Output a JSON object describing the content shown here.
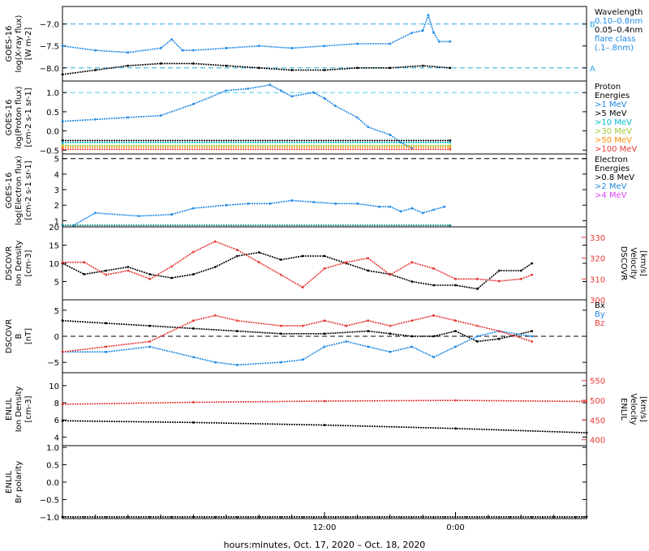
{
  "chart_data": {
    "type": "line",
    "xlabel": "hours:minutes, Oct. 17, 2020 – Oct. 18, 2020",
    "x_ticks": [
      "12:00",
      "0:00"
    ],
    "x_range_hours": [
      -12,
      36
    ],
    "panels": [
      {
        "id": "xray",
        "ylabel": [
          "GOES-16",
          "log(X-ray flux)",
          "[W m-2]"
        ],
        "ylim": [
          -8.3,
          -6.6
        ],
        "yticks": [
          -7.0,
          -7.5,
          -8.0
        ],
        "ytick_labels": [
          "−7.0",
          "−7.5",
          "−8.0"
        ],
        "hlines": [
          {
            "y": -7.0,
            "color": "#29a7e5",
            "label": "B"
          },
          {
            "y": -8.0,
            "color": "#29a7e5",
            "label": "A"
          }
        ],
        "legend": [
          {
            "text": "Wavelength",
            "color": "#000000"
          },
          {
            "text": "0.10–0.8nm",
            "color": "#1e88e5"
          },
          {
            "text": "0.05–0.4nm",
            "color": "#000000"
          },
          {
            "text": "flare class",
            "color": "#1e88e5"
          },
          {
            "text": "(.1–.8nm)",
            "color": "#1e88e5"
          }
        ],
        "series": [
          {
            "name": "0.10–0.8nm",
            "color": "#1e88e5",
            "x": [
              -12,
              -9,
              -6,
              -3,
              -2,
              -1,
              0,
              3,
              6,
              9,
              12,
              15,
              18,
              20,
              21,
              21.5,
              22,
              22.5,
              23.5
            ],
            "y": [
              -7.5,
              -7.6,
              -7.65,
              -7.55,
              -7.35,
              -7.6,
              -7.6,
              -7.55,
              -7.5,
              -7.55,
              -7.5,
              -7.45,
              -7.45,
              -7.2,
              -7.15,
              -6.8,
              -7.2,
              -7.4,
              -7.4
            ]
          },
          {
            "name": "0.05–0.4nm",
            "color": "#000000",
            "x": [
              -12,
              -9,
              -6,
              -3,
              0,
              3,
              6,
              9,
              12,
              15,
              18,
              21,
              23.5
            ],
            "y": [
              -8.15,
              -8.05,
              -7.95,
              -7.9,
              -7.9,
              -7.95,
              -8.0,
              -8.05,
              -8.05,
              -8.0,
              -8.0,
              -7.95,
              -8.0
            ]
          }
        ]
      },
      {
        "id": "proton",
        "ylabel": [
          "GOES-16",
          "log(Proton flux)",
          "[cm-2 s-1 sr-1]"
        ],
        "ylim": [
          -0.6,
          1.3
        ],
        "yticks": [
          1.0,
          0.5,
          0.0,
          -0.5
        ],
        "ytick_labels": [
          "1.0",
          "0.5",
          "0.0",
          "−0.5"
        ],
        "hlines": [
          {
            "y": 1.0,
            "color": "#4dd0e1",
            "label": ""
          }
        ],
        "legend": [
          {
            "text": "Proton",
            "color": "#000000"
          },
          {
            "text": "Energies",
            "color": "#000000"
          },
          {
            "text": ">1 MeV",
            "color": "#1e88e5"
          },
          {
            "text": ">5 MeV",
            "color": "#000000"
          },
          {
            "text": ">10 MeV",
            "color": "#00bcd4"
          },
          {
            "text": ">30 MeV",
            "color": "#9acd32"
          },
          {
            "text": ">50 MeV",
            "color": "#ff8c00"
          },
          {
            "text": ">100 MeV",
            "color": "#e53935"
          }
        ],
        "series": [
          {
            "name": ">1 MeV",
            "color": "#1e88e5",
            "x": [
              -12,
              -9,
              -6,
              -3,
              0,
              3,
              5,
              7,
              8,
              9,
              11,
              12,
              13,
              15,
              16,
              18,
              19,
              20
            ],
            "y": [
              0.25,
              0.3,
              0.35,
              0.4,
              0.7,
              1.05,
              1.1,
              1.2,
              1.05,
              0.9,
              1.0,
              0.85,
              0.65,
              0.35,
              0.1,
              -0.1,
              -0.3,
              -0.45
            ]
          },
          {
            "name": ">5 MeV",
            "color": "#000000",
            "x": [
              -12,
              23.5
            ],
            "y": [
              -0.25,
              -0.25
            ]
          },
          {
            "name": ">10 MeV",
            "color": "#00bcd4",
            "x": [
              -12,
              23.5
            ],
            "y": [
              -0.3,
              -0.3
            ]
          },
          {
            "name": ">30 MeV",
            "color": "#9acd32",
            "x": [
              -12,
              23.5
            ],
            "y": [
              -0.38,
              -0.38
            ]
          },
          {
            "name": ">50 MeV",
            "color": "#ff8c00",
            "x": [
              -12,
              23.5
            ],
            "y": [
              -0.42,
              -0.42
            ]
          },
          {
            "name": ">100 MeV",
            "color": "#e53935",
            "x": [
              -12,
              23.5
            ],
            "y": [
              -0.48,
              -0.48
            ]
          }
        ]
      },
      {
        "id": "electron",
        "ylabel": [
          "GOES-16",
          "log(Electron flux)",
          "[cm-2 s-1 sr-1]"
        ],
        "ylim": [
          0.6,
          5.3
        ],
        "yticks": [
          5,
          4,
          3,
          2,
          1
        ],
        "ytick_labels": [
          "5",
          "4",
          "3",
          "2",
          "1"
        ],
        "hlines": [
          {
            "y": 5.0,
            "color": "#000000",
            "label": ""
          }
        ],
        "legend": [
          {
            "text": "Electron",
            "color": "#000000"
          },
          {
            "text": "Energies",
            "color": "#000000"
          },
          {
            "text": ">0.8 MeV",
            "color": "#000000"
          },
          {
            "text": ">2 MeV",
            "color": "#1e88e5"
          },
          {
            "text": ">4 MeV",
            "color": "#e040fb"
          }
        ],
        "series": [
          {
            "name": ">2 MeV",
            "color": "#1e88e5",
            "x": [
              -11,
              -9,
              -5,
              -2,
              0,
              3,
              5,
              7,
              9,
              11,
              13,
              15,
              17,
              18,
              19,
              20,
              21,
              22,
              23
            ],
            "y": [
              0.7,
              1.5,
              1.3,
              1.4,
              1.8,
              2.0,
              2.1,
              2.1,
              2.3,
              2.2,
              2.1,
              2.1,
              1.9,
              1.9,
              1.6,
              1.8,
              1.5,
              1.7,
              1.9
            ]
          },
          {
            "name": ">0.8 MeV",
            "color": "#00897b",
            "x": [
              -12,
              23.5
            ],
            "y": [
              0.7,
              0.7
            ]
          }
        ]
      },
      {
        "id": "dscovr_density",
        "ylabel": [
          "DSCOVR",
          "Ion Density",
          "[cm-3]"
        ],
        "ylim": [
          0,
          20
        ],
        "yticks": [
          20,
          15,
          10,
          5
        ],
        "ytick_labels": [
          "20",
          "15",
          "10",
          "5"
        ],
        "y2label": [
          "DSCOVR",
          "Velocity",
          "[km/s]"
        ],
        "y2lim": [
          300,
          335
        ],
        "y2ticks": [
          330,
          320,
          310,
          300
        ],
        "legend": [],
        "series": [
          {
            "name": "Density",
            "color": "#000000",
            "axis": "left",
            "x": [
              -12,
              -10,
              -8,
              -6,
              -4,
              -2,
              0,
              2,
              4,
              6,
              8,
              10,
              12,
              14,
              16,
              18,
              20,
              22,
              24,
              26,
              28,
              30,
              31
            ],
            "y": [
              10,
              7,
              8,
              9,
              7,
              6,
              7,
              9,
              12,
              13,
              11,
              12,
              12,
              10,
              8,
              7,
              5,
              4,
              4,
              3,
              8,
              8,
              10
            ]
          },
          {
            "name": "Velocity",
            "color": "#e53935",
            "axis": "right",
            "x": [
              -12,
              -10,
              -8,
              -6,
              -4,
              -2,
              0,
              2,
              4,
              6,
              8,
              10,
              12,
              14,
              16,
              18,
              20,
              22,
              24,
              26,
              28,
              30,
              31
            ],
            "y": [
              318,
              318,
              312,
              314,
              310,
              316,
              323,
              328,
              324,
              318,
              312,
              306,
              315,
              318,
              320,
              312,
              318,
              315,
              310,
              310,
              309,
              310,
              312
            ]
          }
        ]
      },
      {
        "id": "dscovr_b",
        "ylabel": [
          "DSCOVR",
          "B",
          "[nT]"
        ],
        "ylim": [
          -7,
          7
        ],
        "yticks": [
          5,
          0,
          -5
        ],
        "ytick_labels": [
          "5",
          "0",
          "−5"
        ],
        "hlines": [
          {
            "y": 0,
            "color": "#000000",
            "label": ""
          }
        ],
        "legend": [
          {
            "text": "Bx",
            "color": "#000000"
          },
          {
            "text": "By",
            "color": "#1e88e5"
          },
          {
            "text": "Bz",
            "color": "#e53935"
          }
        ],
        "series": [
          {
            "name": "Bx",
            "color": "#000000",
            "x": [
              -12,
              -8,
              -4,
              0,
              4,
              8,
              12,
              16,
              18,
              20,
              22,
              24,
              26,
              28,
              31
            ],
            "y": [
              3,
              2.5,
              2,
              1.5,
              1,
              0.5,
              0.5,
              1,
              0.5,
              0,
              0,
              1,
              -1,
              -0.5,
              1
            ]
          },
          {
            "name": "By",
            "color": "#1e88e5",
            "x": [
              -12,
              -8,
              -4,
              0,
              2,
              4,
              8,
              10,
              12,
              14,
              16,
              18,
              20,
              22,
              24,
              26,
              28,
              31
            ],
            "y": [
              -3,
              -3,
              -2,
              -4,
              -5,
              -5.5,
              -5,
              -4.5,
              -2,
              -1,
              -2,
              -3,
              -2,
              -4,
              -2,
              0,
              1,
              0
            ]
          },
          {
            "name": "Bz",
            "color": "#e53935",
            "x": [
              -12,
              -8,
              -4,
              0,
              2,
              4,
              8,
              10,
              12,
              14,
              16,
              18,
              20,
              22,
              24,
              26,
              28,
              31
            ],
            "y": [
              -3,
              -2,
              -1,
              3,
              4,
              3,
              2,
              2,
              3,
              2,
              3,
              2,
              3,
              4,
              3,
              2,
              1,
              -1
            ]
          }
        ]
      },
      {
        "id": "enlil_density",
        "ylabel": [
          "ENLIL",
          "Ion Density",
          "[cm-3]"
        ],
        "ylim": [
          3,
          11.5
        ],
        "yticks": [
          10,
          8,
          6,
          4
        ],
        "ytick_labels": [
          "10",
          "8",
          "6",
          "4"
        ],
        "y2label": [
          "ENLIL",
          "Velocity",
          "[km/s]"
        ],
        "y2lim": [
          385,
          570
        ],
        "y2ticks": [
          550,
          500,
          450,
          400
        ],
        "legend": [],
        "series": [
          {
            "name": "Density",
            "color": "#000000",
            "axis": "left",
            "x": [
              -12,
              0,
              12,
              24,
              36
            ],
            "y": [
              5.9,
              5.7,
              5.4,
              5.0,
              4.5
            ]
          },
          {
            "name": "Velocity",
            "color": "#e53935",
            "axis": "right",
            "x": [
              -12,
              0,
              12,
              24,
              36
            ],
            "y": [
              490,
              495,
              498,
              500,
              497
            ]
          }
        ]
      },
      {
        "id": "enlil_polarity",
        "ylabel": [
          "ENLIL",
          "Br polarity"
        ],
        "ylim": [
          -1.05,
          1.05
        ],
        "yticks": [
          1.0,
          0.5,
          0.0,
          -0.5,
          -1.0
        ],
        "ytick_labels": [
          "1.0",
          "0.5",
          "0.0",
          "−0.5",
          "−1.0"
        ],
        "legend": [],
        "series": [
          {
            "name": "Polarity",
            "color": "#000000",
            "x": [
              -12,
              36
            ],
            "y": [
              -1.0,
              -1.0
            ]
          }
        ]
      }
    ]
  }
}
